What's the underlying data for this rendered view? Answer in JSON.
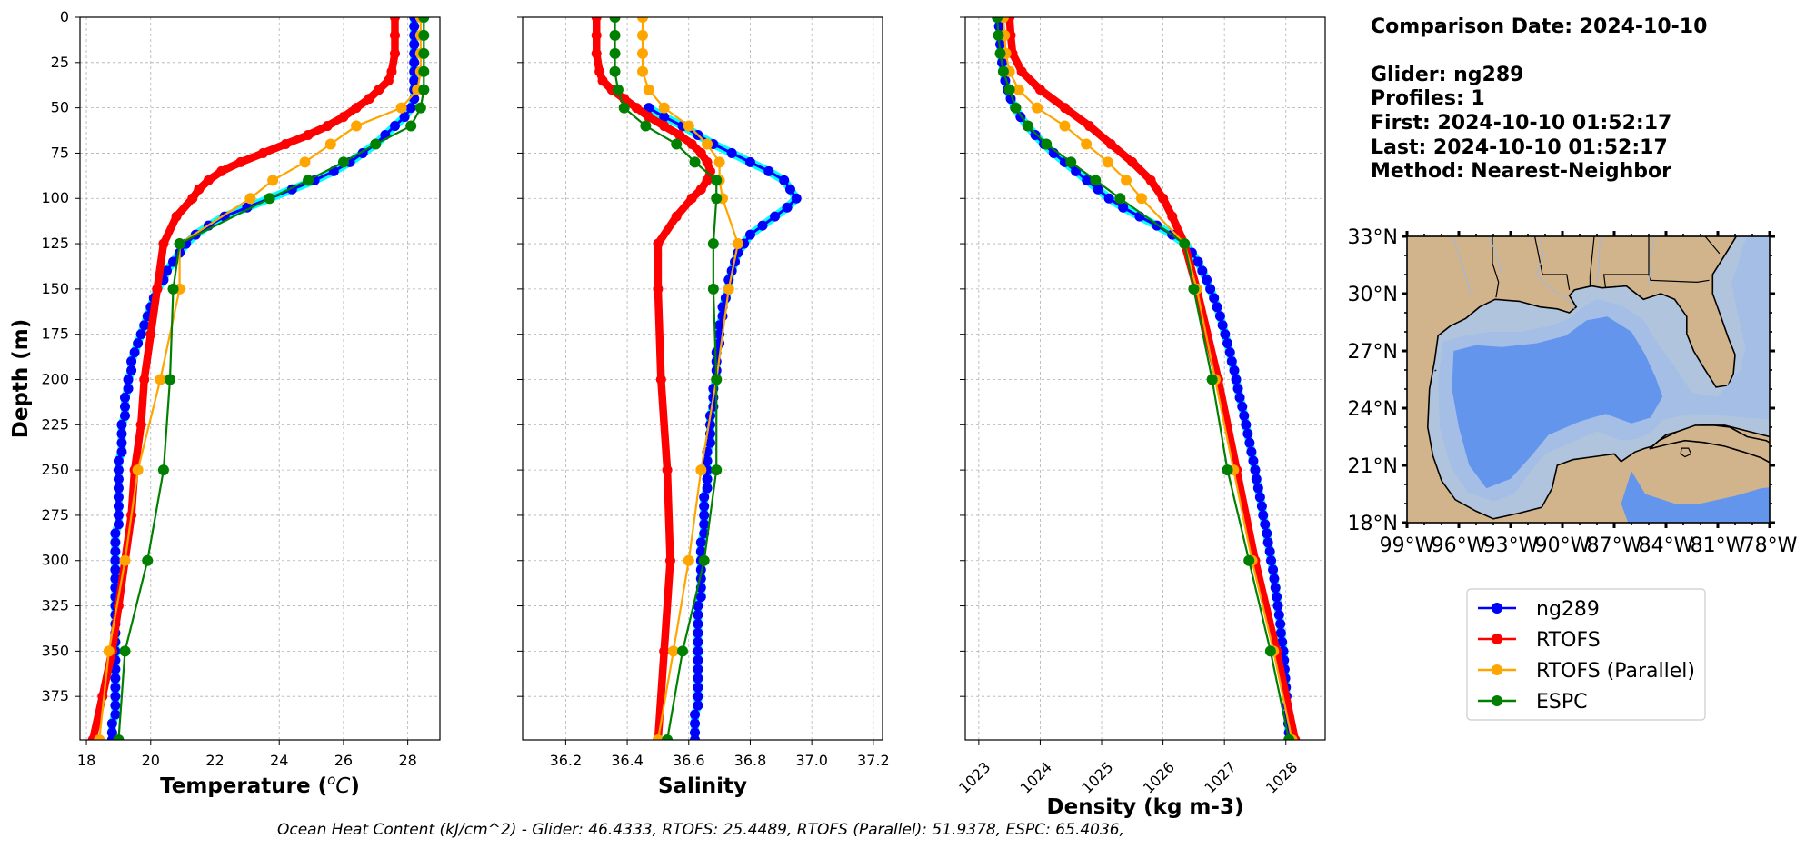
{
  "info": {
    "comparison_date": "Comparison Date: 2024-10-10",
    "glider": "Glider: ng289",
    "profiles": "Profiles: 1",
    "first": "First: 2024-10-10 01:52:17",
    "last": "Last: 2024-10-10 01:52:17",
    "method": "Method: Nearest-Neighbor"
  },
  "footer": "Ocean Heat Content (kJ/cm^2) - Glider: 46.4333,  RTOFS: 25.4489,  RTOFS (Parallel): 51.9378,  ESPC: 65.4036,",
  "legend": [
    {
      "label": "ng289",
      "color": "#0000ff"
    },
    {
      "label": "RTOFS",
      "color": "#ff0000"
    },
    {
      "label": "RTOFS (Parallel)",
      "color": "#ffa500"
    },
    {
      "label": "ESPC",
      "color": "#008000"
    }
  ],
  "map": {
    "lat_ticks": [
      "33°N",
      "30°N",
      "27°N",
      "24°N",
      "21°N",
      "18°N"
    ],
    "lon_ticks": [
      "99°W",
      "96°W",
      "93°W",
      "90°W",
      "87°W",
      "84°W",
      "81°W",
      "78°W"
    ],
    "lat_range": [
      18,
      33
    ],
    "lon_range": [
      -99,
      -78
    ],
    "land_color": "#d2b48c",
    "shelf_color": "#b0c4de",
    "slope_color": "#a4bee6",
    "deep_color": "#6495ed"
  },
  "chart_data": [
    {
      "type": "line",
      "xlabel": "Temperature (°C)",
      "ylabel": "Depth (m)",
      "xlim": [
        17.8,
        29
      ],
      "ylim": [
        399,
        0
      ],
      "x_ticks": [
        "18",
        "20",
        "22",
        "24",
        "26",
        "28"
      ],
      "y_ticks": [
        "0",
        "25",
        "50",
        "75",
        "100",
        "125",
        "150",
        "175",
        "200",
        "225",
        "250",
        "275",
        "300",
        "325",
        "350",
        "375"
      ],
      "grid": true,
      "series": [
        {
          "name": "ng289",
          "color": "#0000ff",
          "depth": [
            0,
            5,
            10,
            15,
            20,
            25,
            30,
            35,
            40,
            45,
            50,
            55,
            60,
            65,
            70,
            75,
            80,
            85,
            90,
            95,
            100,
            105,
            110,
            115,
            120,
            125,
            130,
            135,
            140,
            145,
            150,
            155,
            160,
            165,
            170,
            175,
            180,
            185,
            190,
            195,
            200,
            205,
            210,
            215,
            220,
            225,
            230,
            235,
            240,
            245,
            250,
            255,
            260,
            265,
            270,
            275,
            280,
            285,
            290,
            295,
            300,
            305,
            310,
            315,
            320,
            325,
            330,
            335,
            340,
            345,
            350,
            355,
            360,
            365,
            370,
            375,
            380,
            385,
            390,
            395,
            399
          ],
          "values": [
            28.2,
            28.2,
            28.2,
            28.2,
            28.2,
            28.2,
            28.2,
            28.2,
            28.2,
            28.2,
            28.1,
            27.9,
            27.6,
            27.3,
            27.0,
            26.6,
            26.2,
            25.7,
            25.1,
            24.4,
            23.7,
            23.0,
            22.3,
            21.8,
            21.4,
            21.1,
            20.9,
            20.7,
            20.5,
            20.4,
            20.2,
            20.1,
            20.0,
            19.9,
            19.8,
            19.7,
            19.6,
            19.5,
            19.4,
            19.4,
            19.3,
            19.3,
            19.2,
            19.2,
            19.2,
            19.1,
            19.1,
            19.1,
            19.1,
            19.0,
            19.0,
            19.0,
            19.0,
            19.0,
            19.0,
            19.0,
            19.0,
            18.9,
            18.9,
            18.9,
            18.9,
            18.9,
            18.9,
            18.9,
            18.9,
            18.9,
            18.9,
            18.9,
            18.9,
            18.9,
            18.9,
            18.9,
            18.9,
            18.9,
            18.9,
            18.9,
            18.9,
            18.9,
            18.8,
            18.8,
            18.8
          ]
        },
        {
          "name": "RTOFS",
          "color": "#ff0000",
          "depth": [
            0,
            10,
            20,
            30,
            35,
            40,
            45,
            50,
            55,
            60,
            65,
            70,
            75,
            80,
            85,
            90,
            95,
            100,
            110,
            125,
            150,
            175,
            200,
            225,
            250,
            275,
            300,
            325,
            350,
            375,
            399
          ],
          "values": [
            27.6,
            27.6,
            27.6,
            27.5,
            27.4,
            27.1,
            26.8,
            26.4,
            26.0,
            25.5,
            24.9,
            24.2,
            23.5,
            22.8,
            22.2,
            21.8,
            21.5,
            21.3,
            20.8,
            20.4,
            20.2,
            20.0,
            19.8,
            19.7,
            19.5,
            19.4,
            19.2,
            19.0,
            18.8,
            18.5,
            18.2
          ]
        },
        {
          "name": "RTOFS (Parallel)",
          "color": "#ffa500",
          "depth": [
            0,
            10,
            20,
            30,
            40,
            50,
            60,
            70,
            80,
            90,
            100,
            125,
            150,
            200,
            250,
            300,
            350,
            399
          ],
          "values": [
            28.4,
            28.4,
            28.4,
            28.4,
            28.3,
            27.8,
            26.4,
            25.6,
            24.8,
            23.8,
            23.1,
            20.9,
            20.9,
            20.3,
            19.6,
            19.2,
            18.7,
            18.4
          ]
        },
        {
          "name": "ESPC",
          "color": "#008000",
          "depth": [
            0,
            10,
            20,
            30,
            40,
            50,
            60,
            70,
            80,
            90,
            100,
            125,
            150,
            200,
            250,
            300,
            350,
            399
          ],
          "values": [
            28.5,
            28.5,
            28.5,
            28.5,
            28.5,
            28.4,
            28.1,
            27.0,
            26.0,
            24.9,
            23.7,
            20.9,
            20.7,
            20.6,
            20.4,
            19.9,
            19.2,
            19.0
          ]
        }
      ]
    },
    {
      "type": "line",
      "xlabel": "Salinity",
      "ylabel": "",
      "xlim": [
        36.06,
        37.23
      ],
      "ylim": [
        399,
        0
      ],
      "x_ticks": [
        "36.2",
        "36.4",
        "36.6",
        "36.8",
        "37.0",
        "37.2"
      ],
      "grid": true,
      "series": [
        {
          "name": "ng289",
          "color": "#0000ff",
          "depth": [
            50,
            55,
            60,
            65,
            70,
            75,
            80,
            85,
            90,
            95,
            100,
            105,
            110,
            115,
            120,
            125,
            130,
            135,
            140,
            145,
            150,
            155,
            160,
            165,
            170,
            175,
            180,
            185,
            190,
            195,
            200,
            205,
            210,
            215,
            220,
            225,
            230,
            235,
            240,
            245,
            250,
            255,
            260,
            265,
            270,
            275,
            280,
            285,
            290,
            295,
            300,
            305,
            310,
            315,
            320,
            325,
            330,
            335,
            340,
            345,
            350,
            355,
            360,
            365,
            370,
            375,
            380,
            385,
            390,
            395,
            399
          ],
          "values": [
            36.47,
            36.52,
            36.58,
            36.63,
            36.68,
            36.74,
            36.8,
            36.86,
            36.91,
            36.93,
            36.95,
            36.92,
            36.88,
            36.84,
            36.8,
            36.78,
            36.76,
            36.75,
            36.74,
            36.73,
            36.73,
            36.72,
            36.71,
            36.71,
            36.7,
            36.7,
            36.7,
            36.69,
            36.69,
            36.69,
            36.69,
            36.68,
            36.68,
            36.68,
            36.67,
            36.67,
            36.67,
            36.67,
            36.66,
            36.66,
            36.66,
            36.66,
            36.66,
            36.65,
            36.65,
            36.65,
            36.65,
            36.65,
            36.64,
            36.64,
            36.64,
            36.64,
            36.64,
            36.64,
            36.64,
            36.63,
            36.63,
            36.63,
            36.63,
            36.63,
            36.63,
            36.63,
            36.63,
            36.63,
            36.63,
            36.63,
            36.63,
            36.62,
            36.62,
            36.62,
            36.62
          ]
        },
        {
          "name": "RTOFS",
          "color": "#ff0000",
          "depth": [
            0,
            10,
            20,
            30,
            35,
            40,
            45,
            50,
            55,
            60,
            65,
            70,
            75,
            80,
            85,
            90,
            95,
            100,
            110,
            125,
            150,
            200,
            250,
            300,
            350,
            399
          ],
          "values": [
            36.3,
            36.3,
            36.3,
            36.31,
            36.32,
            36.35,
            36.39,
            36.43,
            36.47,
            36.52,
            36.57,
            36.61,
            36.64,
            36.66,
            36.67,
            36.66,
            36.64,
            36.61,
            36.56,
            36.5,
            36.5,
            36.51,
            36.53,
            36.54,
            36.52,
            36.5
          ]
        },
        {
          "name": "RTOFS (Parallel)",
          "color": "#ffa500",
          "depth": [
            0,
            10,
            20,
            30,
            40,
            50,
            60,
            70,
            80,
            90,
            100,
            125,
            150,
            200,
            250,
            300,
            350,
            399
          ],
          "values": [
            36.45,
            36.45,
            36.45,
            36.45,
            36.47,
            36.52,
            36.6,
            36.66,
            36.7,
            36.7,
            36.71,
            36.76,
            36.73,
            36.69,
            36.64,
            36.6,
            36.55,
            36.5
          ]
        },
        {
          "name": "ESPC",
          "color": "#008000",
          "depth": [
            0,
            10,
            20,
            30,
            40,
            50,
            60,
            70,
            80,
            90,
            100,
            125,
            150,
            200,
            250,
            300,
            350,
            399
          ],
          "values": [
            36.36,
            36.36,
            36.36,
            36.36,
            36.37,
            36.39,
            36.46,
            36.56,
            36.62,
            36.69,
            36.69,
            36.68,
            36.68,
            36.69,
            36.69,
            36.65,
            36.58,
            36.53
          ]
        }
      ]
    },
    {
      "type": "line",
      "xlabel": "Density (kg m-3)",
      "ylabel": "",
      "xlim": [
        1022.78,
        1028.64
      ],
      "ylim": [
        399,
        0
      ],
      "x_ticks": [
        "1023",
        "1024",
        "1025",
        "1026",
        "1027",
        "1028"
      ],
      "grid": true,
      "series": [
        {
          "name": "ng289",
          "color": "#0000ff",
          "depth": [
            0,
            5,
            10,
            15,
            20,
            25,
            30,
            35,
            40,
            45,
            50,
            55,
            60,
            65,
            70,
            75,
            80,
            85,
            90,
            95,
            100,
            105,
            110,
            115,
            120,
            125,
            130,
            135,
            140,
            145,
            150,
            155,
            160,
            165,
            170,
            175,
            180,
            185,
            190,
            195,
            200,
            205,
            210,
            215,
            220,
            225,
            230,
            235,
            240,
            245,
            250,
            255,
            260,
            265,
            270,
            275,
            280,
            285,
            290,
            295,
            300,
            305,
            310,
            315,
            320,
            325,
            330,
            335,
            340,
            345,
            350,
            355,
            360,
            365,
            370,
            375,
            380,
            385,
            390,
            395,
            399
          ],
          "values": [
            1023.32,
            1023.33,
            1023.34,
            1023.35,
            1023.36,
            1023.38,
            1023.4,
            1023.43,
            1023.47,
            1023.52,
            1023.59,
            1023.68,
            1023.79,
            1023.92,
            1024.06,
            1024.22,
            1024.4,
            1024.58,
            1024.76,
            1024.94,
            1025.12,
            1025.35,
            1025.62,
            1025.9,
            1026.15,
            1026.35,
            1026.47,
            1026.57,
            1026.64,
            1026.71,
            1026.77,
            1026.83,
            1026.88,
            1026.93,
            1026.97,
            1027.01,
            1027.05,
            1027.09,
            1027.12,
            1027.16,
            1027.19,
            1027.22,
            1027.25,
            1027.29,
            1027.32,
            1027.35,
            1027.38,
            1027.41,
            1027.44,
            1027.47,
            1027.5,
            1027.52,
            1027.55,
            1027.58,
            1027.61,
            1027.63,
            1027.66,
            1027.69,
            1027.71,
            1027.74,
            1027.76,
            1027.79,
            1027.81,
            1027.83,
            1027.85,
            1027.87,
            1027.89,
            1027.91,
            1027.92,
            1027.94,
            1027.96,
            1027.97,
            1027.98,
            1027.99,
            1028.0,
            1028.01,
            1028.02,
            1028.03,
            1028.04,
            1028.05,
            1028.06
          ]
        },
        {
          "name": "RTOFS",
          "color": "#ff0000",
          "depth": [
            0,
            10,
            20,
            30,
            40,
            50,
            60,
            70,
            80,
            90,
            100,
            110,
            125,
            150,
            200,
            250,
            300,
            350,
            399
          ],
          "values": [
            1023.5,
            1023.52,
            1023.55,
            1023.7,
            1024.0,
            1024.4,
            1024.8,
            1025.15,
            1025.5,
            1025.8,
            1026.0,
            1026.15,
            1026.35,
            1026.55,
            1026.9,
            1027.2,
            1027.5,
            1027.85,
            1028.15
          ]
        },
        {
          "name": "RTOFS (Parallel)",
          "color": "#ffa500",
          "depth": [
            0,
            10,
            20,
            30,
            40,
            50,
            60,
            70,
            80,
            90,
            100,
            125,
            150,
            200,
            250,
            300,
            350,
            399
          ],
          "values": [
            1023.4,
            1023.42,
            1023.44,
            1023.5,
            1023.65,
            1023.95,
            1024.4,
            1024.75,
            1025.1,
            1025.4,
            1025.65,
            1026.35,
            1026.55,
            1026.85,
            1027.15,
            1027.45,
            1027.8,
            1028.1
          ]
        },
        {
          "name": "ESPC",
          "color": "#008000",
          "depth": [
            0,
            10,
            20,
            30,
            40,
            50,
            60,
            70,
            80,
            90,
            100,
            125,
            150,
            200,
            250,
            300,
            350,
            399
          ],
          "values": [
            1023.3,
            1023.32,
            1023.35,
            1023.4,
            1023.5,
            1023.6,
            1023.8,
            1024.1,
            1024.5,
            1024.9,
            1025.3,
            1026.35,
            1026.5,
            1026.8,
            1027.05,
            1027.4,
            1027.75,
            1028.05
          ]
        }
      ]
    }
  ]
}
